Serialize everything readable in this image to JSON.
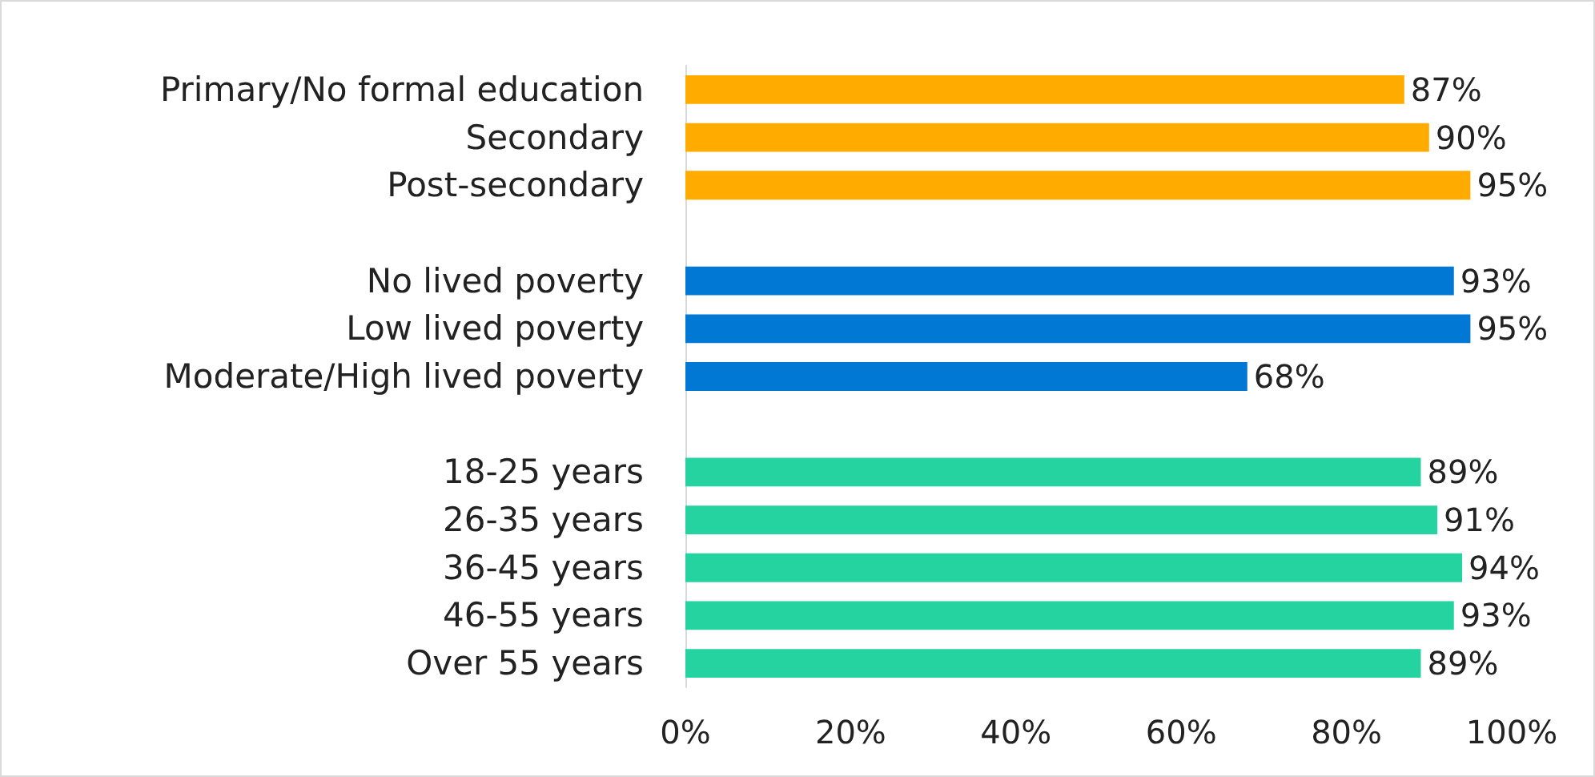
{
  "chart_data": {
    "type": "bar",
    "orientation": "horizontal",
    "categories": [
      "Primary/No formal education",
      "Secondary",
      "Post-secondary",
      null,
      "No lived poverty",
      "Low lived poverty",
      "Moderate/High lived poverty",
      null,
      "18-25 years",
      "26-35 years",
      "36-45 years",
      "46-55 years",
      "Over 55 years"
    ],
    "values": [
      87,
      90,
      95,
      null,
      93,
      95,
      68,
      null,
      89,
      91,
      94,
      93,
      89
    ],
    "colors": [
      "#ffab00",
      "#ffab00",
      "#ffab00",
      null,
      "#0078d4",
      "#0078d4",
      "#0078d4",
      null,
      "#24d3a0",
      "#24d3a0",
      "#24d3a0",
      "#24d3a0",
      "#24d3a0"
    ],
    "value_labels": [
      "87%",
      "90%",
      "95%",
      null,
      "93%",
      "95%",
      "68%",
      null,
      "89%",
      "91%",
      "94%",
      "93%",
      "89%"
    ],
    "xlim": [
      0,
      100
    ],
    "xticks": [
      {
        "value": 0,
        "label": "0%"
      },
      {
        "value": 20,
        "label": "20%"
      },
      {
        "value": 40,
        "label": "40%"
      },
      {
        "value": 60,
        "label": "60%"
      },
      {
        "value": 80,
        "label": "80%"
      },
      {
        "value": 100,
        "label": "100%"
      }
    ],
    "grid": false
  }
}
